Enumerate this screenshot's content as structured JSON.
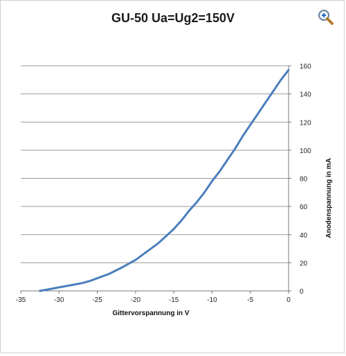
{
  "window": {
    "title": "GU-50 Ua=Ug2=150V",
    "zoom_icon": "magnifier-plus-icon"
  },
  "chart_data": {
    "type": "line",
    "title": "GU-50 Ua=Ug2=150V",
    "xlabel": "Gittervorspannung in V",
    "ylabel": "Anodenspannung in mA",
    "xlim": [
      -35,
      0
    ],
    "ylim": [
      0,
      160
    ],
    "x_ticks": [
      "-35",
      "-30",
      "-25",
      "-20",
      "-15",
      "-10",
      "-5",
      "0"
    ],
    "y_ticks": [
      "0",
      "20",
      "40",
      "60",
      "80",
      "100",
      "120",
      "140",
      "160"
    ],
    "grid": "horizontal",
    "y_axis_position": "right",
    "line_color": "#4a7ebb",
    "series": [
      {
        "x": [
          -32.5,
          -31,
          -30,
          -28.5,
          -27,
          -26,
          -25,
          -23.5,
          -22,
          -21,
          -20,
          -19,
          -18,
          -17,
          -16,
          -15,
          -14,
          -13,
          -12,
          -11,
          -10,
          -9,
          -8,
          -7,
          -6,
          -5,
          -4,
          -3,
          -2,
          -1,
          0
        ],
        "y": [
          0,
          1.5,
          2.5,
          4,
          5.5,
          7,
          9,
          12,
          16,
          19,
          22,
          26,
          30,
          34,
          39,
          44,
          50,
          57,
          63,
          70,
          78,
          85,
          93,
          101,
          110,
          118,
          126,
          134,
          142,
          150,
          157
        ]
      }
    ]
  }
}
